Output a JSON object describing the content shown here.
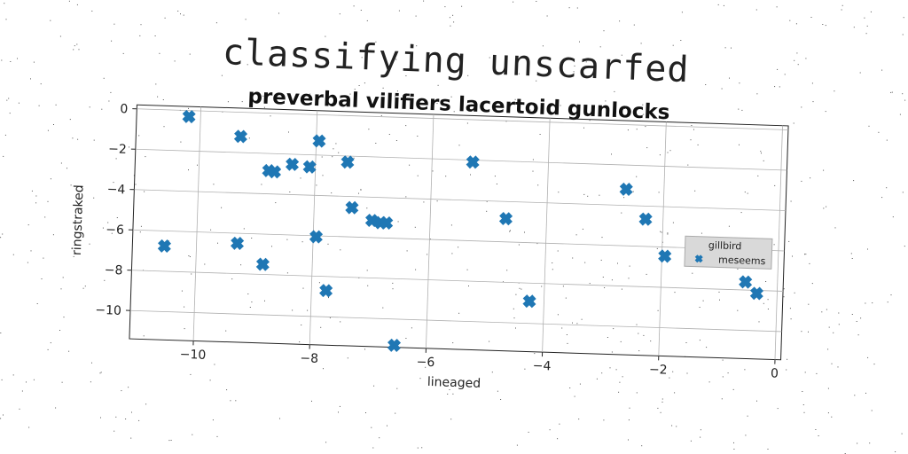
{
  "title": "classifying unscarfed",
  "subtitle": "preverbal vilifiers lacertoid gunlocks",
  "chart_data": {
    "type": "scatter",
    "xlabel": "lineaged",
    "ylabel": "ringstraked",
    "xlim": [
      -11.1,
      0.1
    ],
    "ylim": [
      -11.4,
      0.2
    ],
    "xticks": [
      -10,
      -8,
      -6,
      -4,
      -2,
      0
    ],
    "yticks": [
      0,
      -2,
      -4,
      -6,
      -8,
      -10
    ],
    "xtick_labels": [
      "−10",
      "−8",
      "−6",
      "−4",
      "−2",
      "0"
    ],
    "ytick_labels": [
      "0",
      "−2",
      "−4",
      "−6",
      "−8",
      "−10"
    ],
    "grid": true,
    "legend": {
      "title": "gillbird",
      "placement": "right",
      "entries": [
        "meseems"
      ]
    },
    "series": [
      {
        "name": "meseems",
        "color": "#1f77b4",
        "marker": "X",
        "points": [
          [
            -10.2,
            -0.3
          ],
          [
            -9.3,
            -1.2
          ],
          [
            -8.8,
            -2.85
          ],
          [
            -8.7,
            -2.9
          ],
          [
            -8.4,
            -2.5
          ],
          [
            -8.1,
            -2.6
          ],
          [
            -7.95,
            -1.3
          ],
          [
            -7.45,
            -2.3
          ],
          [
            -5.3,
            -2.1
          ],
          [
            -7.35,
            -4.55
          ],
          [
            -7.0,
            -5.15
          ],
          [
            -6.85,
            -5.25
          ],
          [
            -6.75,
            -5.25
          ],
          [
            -4.7,
            -4.85
          ],
          [
            -7.95,
            -6.05
          ],
          [
            -10.55,
            -6.75
          ],
          [
            -9.3,
            -6.5
          ],
          [
            -8.85,
            -7.5
          ],
          [
            -7.75,
            -8.7
          ],
          [
            -4.25,
            -8.9
          ],
          [
            -6.55,
            -11.3
          ],
          [
            -2.65,
            -3.2
          ],
          [
            -2.3,
            -4.65
          ],
          [
            -1.95,
            -6.45
          ],
          [
            -0.55,
            -7.6
          ],
          [
            -0.35,
            -8.15
          ]
        ]
      }
    ]
  }
}
